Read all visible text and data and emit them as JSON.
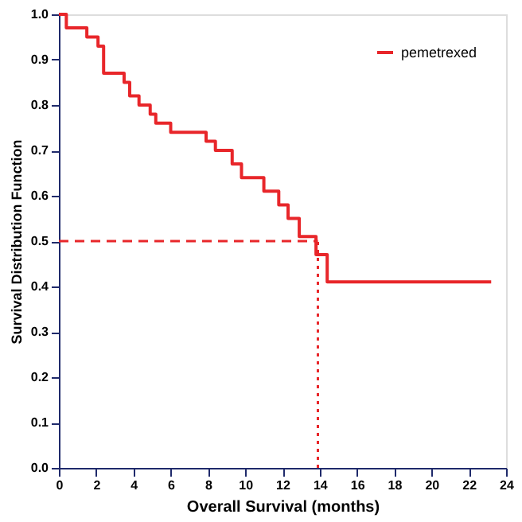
{
  "chart_data": {
    "type": "step",
    "xlabel": "Overall Survival (months)",
    "ylabel": "Survival Distribution Function",
    "xlim": [
      0,
      24
    ],
    "xticks": [
      0,
      2,
      4,
      6,
      8,
      10,
      12,
      14,
      16,
      18,
      20,
      22,
      24
    ],
    "ylim": [
      0,
      1
    ],
    "yticks": [
      {
        "value": 0,
        "label": "0.0"
      },
      0.1,
      0.2,
      0.3,
      0.4,
      0.5,
      0.6,
      0.7,
      0.8,
      0.9,
      {
        "value": 1,
        "label": "1.0"
      }
    ],
    "series": [
      {
        "name": "pemetrexed",
        "color": "#e8262a",
        "x": [
          0,
          0.4,
          1.5,
          2.1,
          2.4,
          3.5,
          3.8,
          4.3,
          4.9,
          5.2,
          6.0,
          7.9,
          8.4,
          9.3,
          9.8,
          11.0,
          11.8,
          12.3,
          12.9,
          13.8,
          14.4,
          23.2
        ],
        "values": [
          1.0,
          0.97,
          0.95,
          0.93,
          0.87,
          0.85,
          0.82,
          0.8,
          0.78,
          0.76,
          0.74,
          0.72,
          0.7,
          0.67,
          0.64,
          0.61,
          0.58,
          0.55,
          0.51,
          0.47,
          0.41,
          0.41
        ]
      }
    ],
    "ref_lines": [
      {
        "axis": "y",
        "value": 0.5,
        "color": "#e8262a",
        "line_style": "dashed"
      },
      {
        "axis": "x",
        "value": 13.9,
        "color": "#e8262a",
        "line_style": "dotted"
      }
    ],
    "legend": "top right",
    "grid": false,
    "marker": "none",
    "line_style": "solid"
  }
}
